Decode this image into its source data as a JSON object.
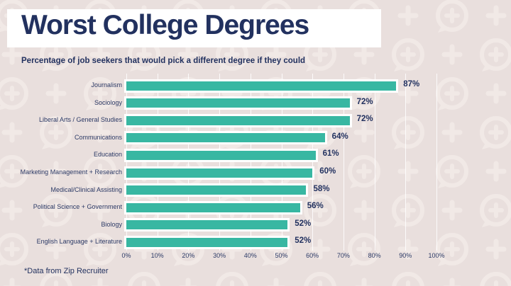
{
  "page": {
    "footnote": "*Data from Zip Recruiter"
  },
  "colors": {
    "background": "#e9dfdd",
    "pattern": "#f3ebe8",
    "bar": "#38b7a2",
    "navy": "#22315f",
    "title_highlight": "#ffffff",
    "gridline": "#f5eeec"
  },
  "chart_data": {
    "type": "bar",
    "orientation": "horizontal",
    "title": "Worst College Degrees",
    "subtitle": "Percentage of job seekers that would pick a different degree if they could",
    "categories": [
      "Journalism",
      "Sociology",
      "Liberal Arts / General Studies",
      "Communications",
      "Education",
      "Marketing Management + Research",
      "Medical/Clinical Assisting",
      "Political Science + Government",
      "Biology",
      "English Language + Literature"
    ],
    "values": [
      87,
      72,
      72,
      64,
      61,
      60,
      58,
      56,
      52,
      52
    ],
    "value_labels": [
      "87%",
      "72%",
      "72%",
      "64%",
      "61%",
      "60%",
      "58%",
      "56%",
      "52%",
      "52%"
    ],
    "x_ticks": [
      "0%",
      "10%",
      "20%",
      "30%",
      "40%",
      "50%",
      "60%",
      "70%",
      "80%",
      "90%",
      "100%"
    ],
    "xlim": [
      0,
      100
    ],
    "xlabel": "",
    "ylabel": "",
    "grid": true,
    "legend": "none"
  }
}
